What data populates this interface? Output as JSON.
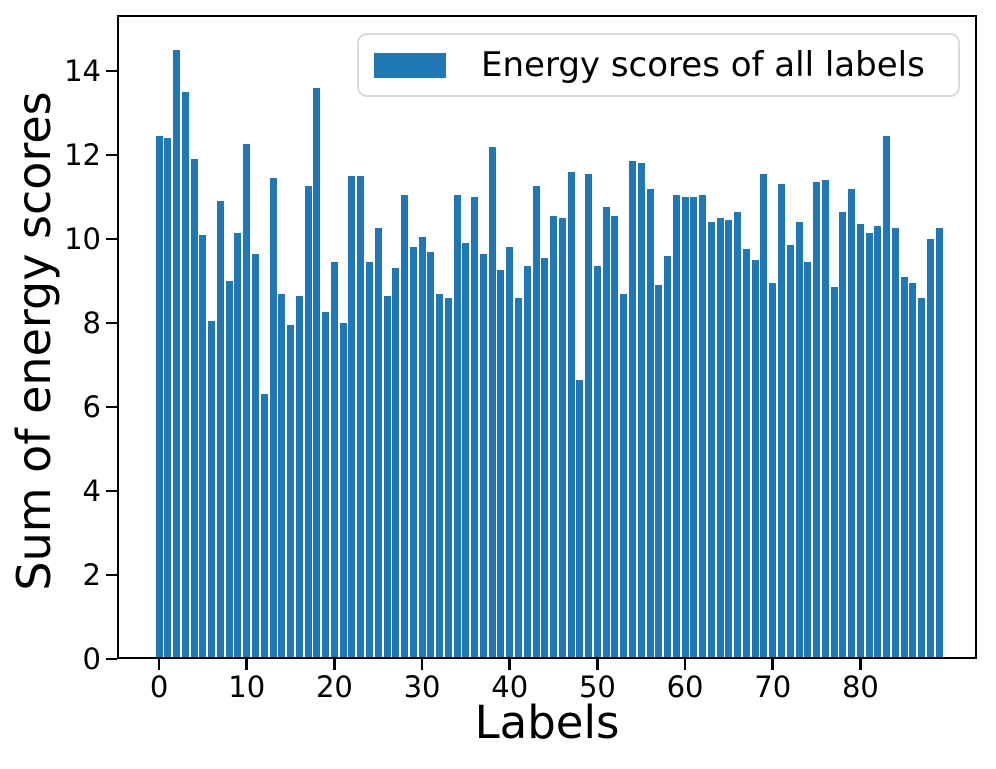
{
  "figure": {
    "background": "#ffffff",
    "text_color": "#000000",
    "spine_color": "#000000"
  },
  "chart_data": {
    "type": "bar",
    "title": "",
    "xlabel": "Labels",
    "ylabel": "Sum of energy scores",
    "legend": {
      "label": "Energy scores of all labels",
      "position": "upper right",
      "swatch_color": "#1f77b4",
      "border_color": "#d9d9d9"
    },
    "bar_color": "#1f77b4",
    "grid": false,
    "x_description": "bar index 0..89, one bar per label",
    "values": [
      12.45,
      12.4,
      14.5,
      13.5,
      11.9,
      10.1,
      8.05,
      10.9,
      9.0,
      10.15,
      12.25,
      9.65,
      6.3,
      11.45,
      8.7,
      7.95,
      8.65,
      11.25,
      13.6,
      8.25,
      9.45,
      8.0,
      11.5,
      11.5,
      9.45,
      10.25,
      8.65,
      9.3,
      11.05,
      9.8,
      10.05,
      9.7,
      8.7,
      8.6,
      11.05,
      9.9,
      11.0,
      9.65,
      12.2,
      9.25,
      9.8,
      8.6,
      9.35,
      11.25,
      9.55,
      10.55,
      10.5,
      11.6,
      6.65,
      11.55,
      9.35,
      10.75,
      10.55,
      8.7,
      11.85,
      11.8,
      11.2,
      8.9,
      9.6,
      11.05,
      11.0,
      11.0,
      11.05,
      10.4,
      10.5,
      10.45,
      10.65,
      9.75,
      9.5,
      11.55,
      8.95,
      11.3,
      9.85,
      10.4,
      9.45,
      11.35,
      11.4,
      8.85,
      10.65,
      11.2,
      10.35,
      10.15,
      10.3,
      12.45,
      10.25,
      9.1,
      8.95,
      8.6,
      10.0,
      10.25
    ],
    "xticks": [
      0,
      10,
      20,
      30,
      40,
      50,
      60,
      70,
      80
    ],
    "yticks": [
      0,
      2,
      4,
      6,
      8,
      10,
      12,
      14
    ],
    "xlim": [
      -4.8,
      93.3
    ],
    "ylim": [
      0,
      15.33
    ],
    "bar_width": 0.8
  }
}
